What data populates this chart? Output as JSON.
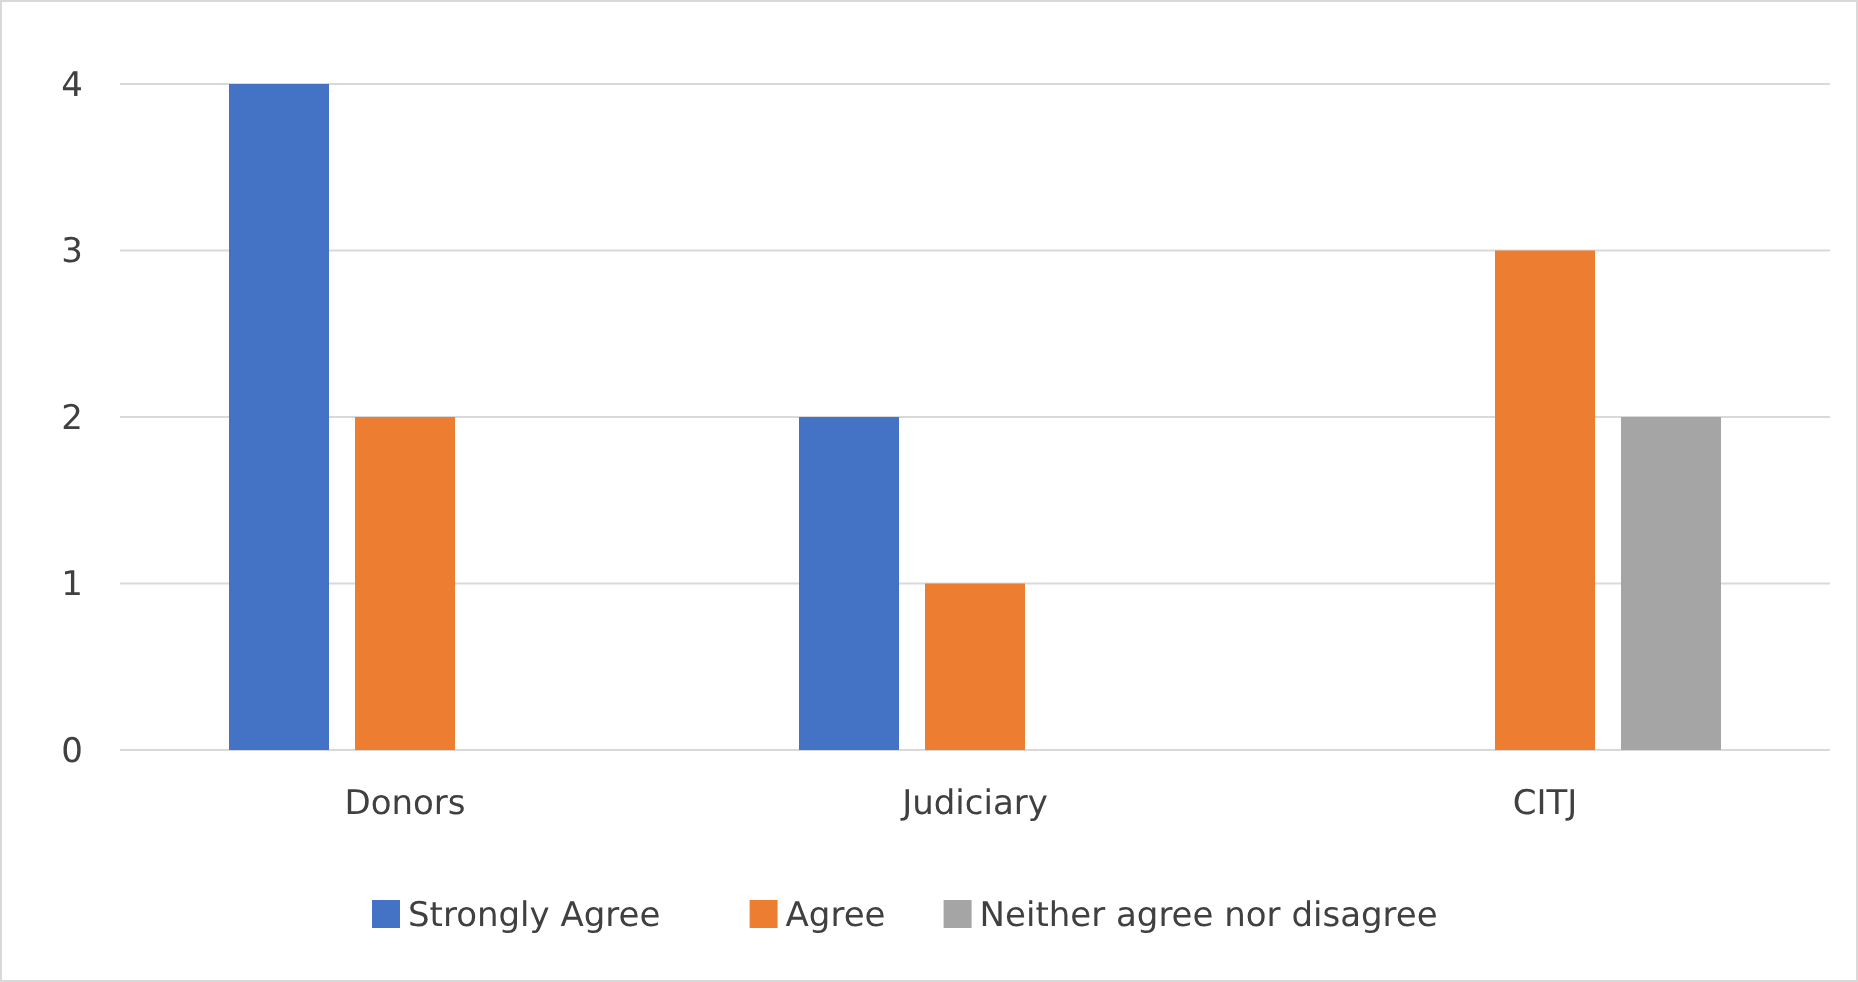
{
  "chart_data": {
    "type": "bar",
    "categories": [
      "Donors",
      "Judiciary",
      "CITJ"
    ],
    "series": [
      {
        "name": "Strongly Agree",
        "color": "#4472c4",
        "values": [
          4,
          2,
          0
        ]
      },
      {
        "name": "Agree",
        "color": "#ed7d31",
        "values": [
          2,
          1,
          3
        ]
      },
      {
        "name": "Neither agree nor disagree",
        "color": "#a5a5a5",
        "values": [
          0,
          0,
          2
        ]
      }
    ],
    "ylim": [
      0,
      4
    ],
    "yticks": [
      0,
      1,
      2,
      3,
      4
    ],
    "grid": "y",
    "legend": "bottom"
  }
}
